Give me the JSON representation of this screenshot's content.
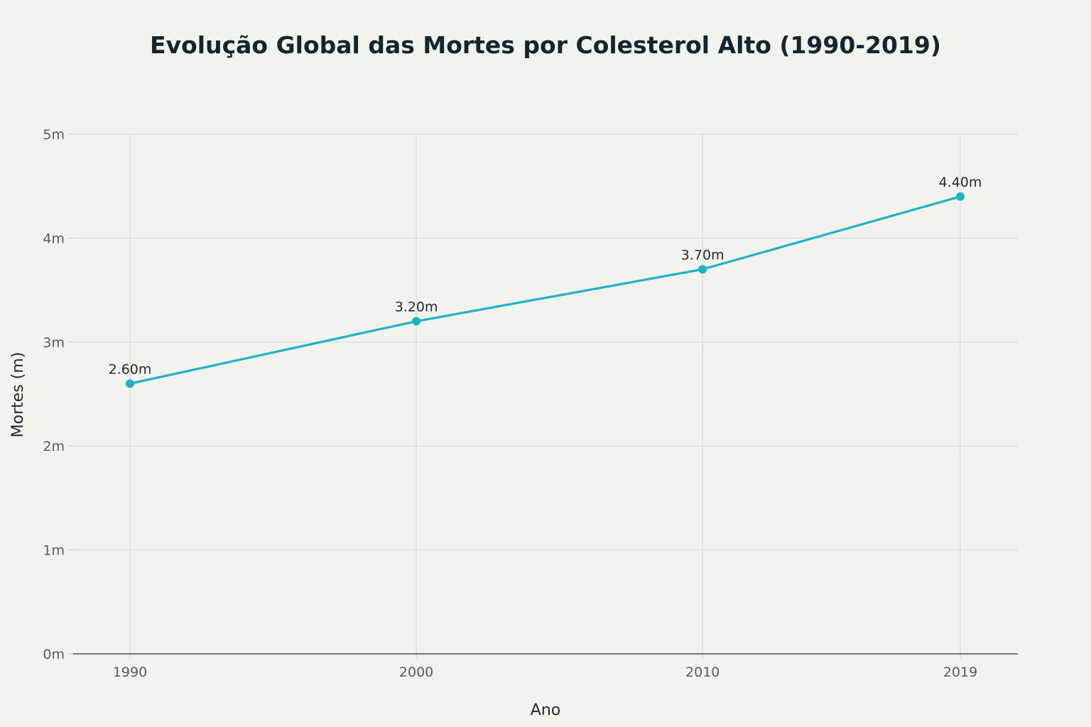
{
  "chart_data": {
    "type": "line",
    "title": "Evolução Global das Mortes por Colesterol Alto (1990-2019)",
    "xlabel": "Ano",
    "ylabel": "Mortes (m)",
    "x": [
      1990,
      2000,
      2010,
      2019
    ],
    "x_tick_labels": [
      "1990",
      "2000",
      "2010",
      "2019"
    ],
    "ylim": [
      0,
      5
    ],
    "y_ticks": [
      0,
      1,
      2,
      3,
      4,
      5
    ],
    "y_tick_labels": [
      "0m",
      "1m",
      "2m",
      "3m",
      "4m",
      "5m"
    ],
    "series": [
      {
        "name": "Mortes",
        "values": [
          2.6,
          3.2,
          3.7,
          4.4
        ],
        "data_labels": [
          "2.60m",
          "3.20m",
          "3.70m",
          "4.40m"
        ],
        "color": "#1fb1c6"
      }
    ],
    "grid": true,
    "legend": "none"
  }
}
